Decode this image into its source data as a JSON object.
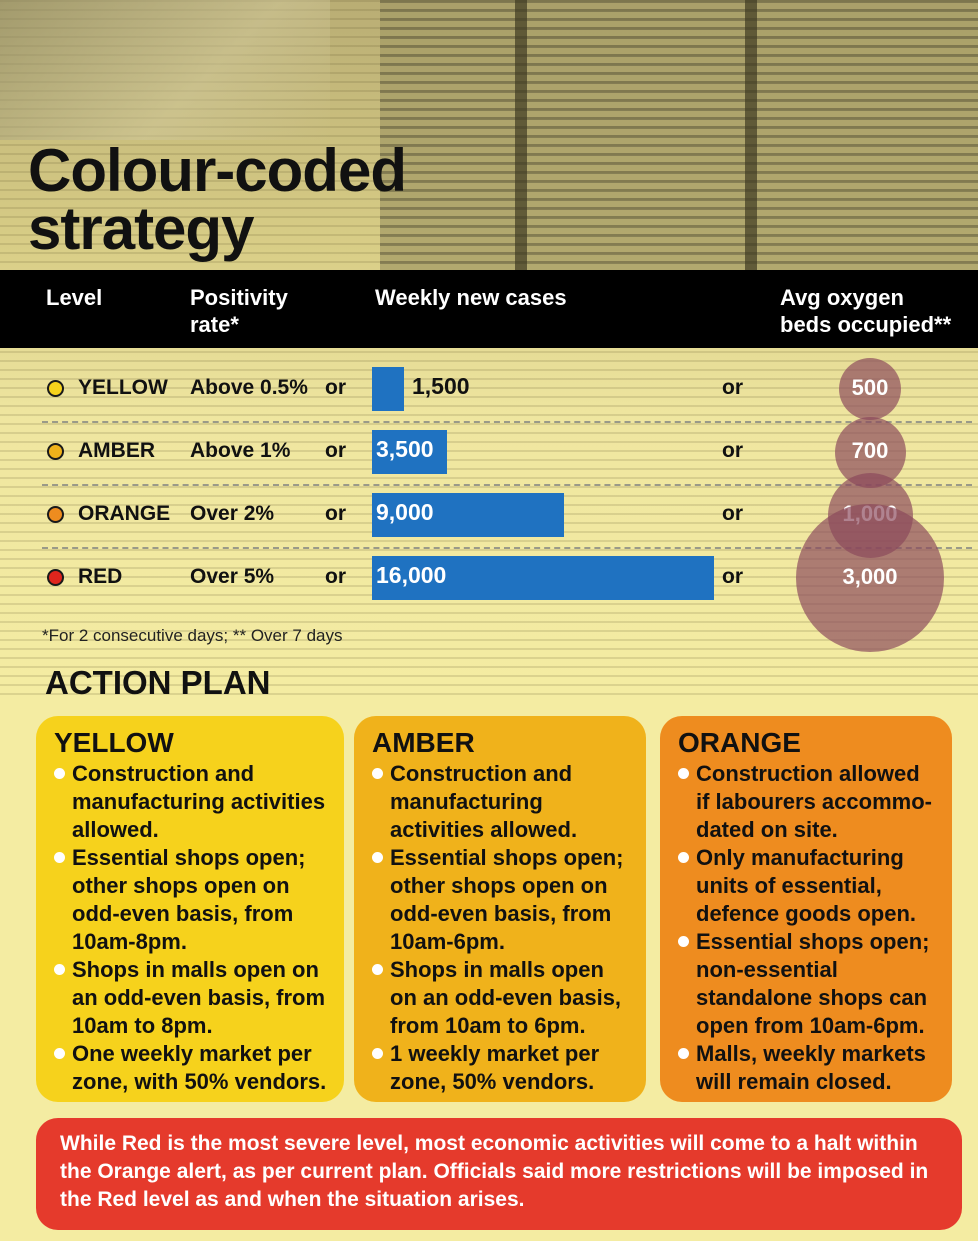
{
  "title_line1": "Colour-coded",
  "title_line2": "strategy",
  "headers": {
    "level": "Level",
    "positivity_line1": "Positivity",
    "positivity_line2": "rate*",
    "cases": "Weekly new cases",
    "oxygen_line1": "Avg oxygen",
    "oxygen_line2": "beds occupied**"
  },
  "connector": "or",
  "colors": {
    "yellow": "#f6d21c",
    "amber": "#f0b21b",
    "orange": "#ee8c1f",
    "red": "#e0251d",
    "bar": "#1f72c1",
    "bubble": "#8b485c"
  },
  "levels": [
    {
      "name": "YELLOW",
      "positivity": "Above 0.5%",
      "cases_label": "1,500",
      "oxygen_label": "500"
    },
    {
      "name": "AMBER",
      "positivity": "Above 1%",
      "cases_label": "3,500",
      "oxygen_label": "700"
    },
    {
      "name": "ORANGE",
      "positivity": "Over 2%",
      "cases_label": "9,000",
      "oxygen_label": "1,000"
    },
    {
      "name": "RED",
      "positivity": "Over 5%",
      "cases_label": "16,000",
      "oxygen_label": "3,000"
    }
  ],
  "chart_data": {
    "type": "table",
    "categories": [
      "YELLOW",
      "AMBER",
      "ORANGE",
      "RED"
    ],
    "series": [
      {
        "name": "Weekly new cases",
        "values": [
          1500,
          3500,
          9000,
          16000
        ]
      },
      {
        "name": "Avg oxygen beds occupied**",
        "values": [
          500,
          700,
          1000,
          3000
        ]
      }
    ]
  },
  "footnote": "*For 2 consecutive days; ** Over 7 days",
  "action_plan_title": "ACTION PLAN",
  "action_plans": [
    {
      "title": "YELLOW",
      "items": [
        "Construction and manufacturing activities allowed.",
        "Essential shops open; other shops open on odd-even basis, from 10am-8pm.",
        "Shops in malls open on an odd-even basis, from 10am to 8pm.",
        "One weekly market per zone, with 50% vendors."
      ]
    },
    {
      "title": "AMBER",
      "items": [
        "Construction and manufacturing activities allowed.",
        "Essential shops open; other shops open on odd-even basis, from 10am-6pm.",
        "Shops in malls open on an odd-even basis, from 10am to 6pm.",
        "1 weekly market per zone, 50% vendors."
      ]
    },
    {
      "title": "ORANGE",
      "items": [
        "Construction allowed if labourers accommo-dated on site.",
        "Only manufacturing units of essential, defence goods open.",
        "Essential shops open; non-essential standalone shops can open from 10am-6pm.",
        "Malls, weekly markets will remain closed."
      ]
    }
  ],
  "note": "While Red is the most severe level, most economic activities will come to a halt within the Orange alert, as per current plan. Officials said more restrictions will be imposed in the Red level as and when the situation arises."
}
